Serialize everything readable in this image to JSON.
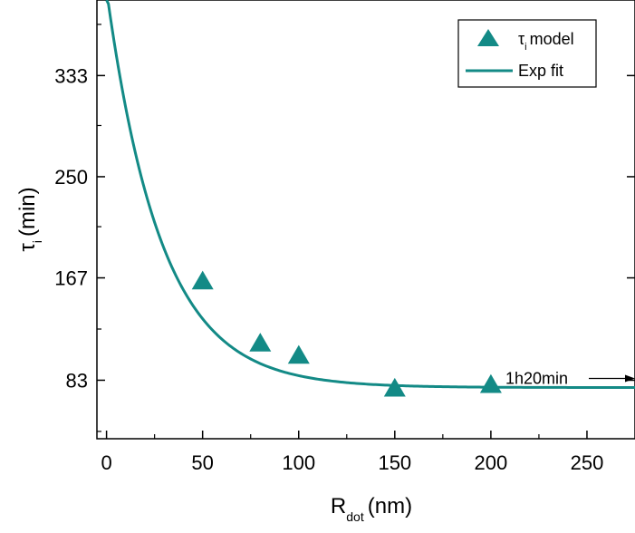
{
  "chart_data": {
    "type": "scatter",
    "xlim": [
      -5,
      275
    ],
    "ylim": [
      35,
      395
    ],
    "x_ticks": [
      0,
      50,
      100,
      150,
      200,
      250
    ],
    "y_ticks": [
      83,
      167,
      250,
      333
    ],
    "x_tick_labels": [
      "0",
      "50",
      "100",
      "150",
      "200",
      "250"
    ],
    "y_tick_labels": [
      "83",
      "167",
      "250",
      "333"
    ],
    "xlabel": {
      "main": "R",
      "sub": "dot",
      "unit": "(nm)"
    },
    "ylabel": {
      "main": "τ",
      "sub": "i",
      "unit": "(min)"
    },
    "legend_position": "top-right",
    "series": [
      {
        "type": "scatter",
        "marker": "triangle",
        "legend_main": "τ",
        "legend_sub": "i",
        "legend_rest": "model",
        "color": "#138a86",
        "x": [
          50,
          80,
          100,
          150,
          200
        ],
        "y": [
          164,
          113,
          103,
          76,
          79
        ]
      },
      {
        "type": "line",
        "legend": "Exp fit",
        "color": "#138a86",
        "model": {
          "asymptote": 77,
          "amplitude": 326,
          "decay": 28.5
        }
      }
    ],
    "annotation": {
      "text": "1h20min",
      "y": 80
    }
  },
  "colors": {
    "series": "#138a86",
    "axis": "#000000"
  }
}
